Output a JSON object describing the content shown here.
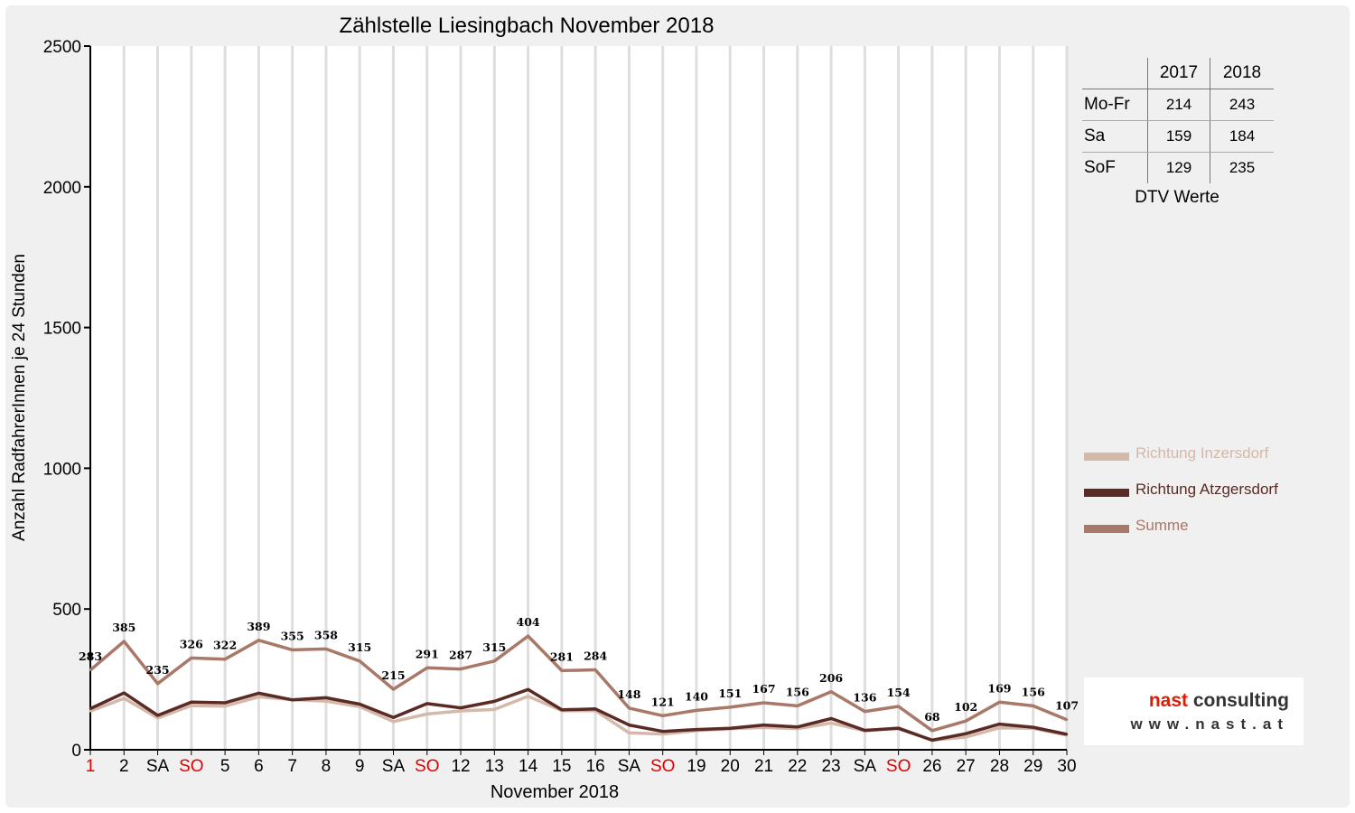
{
  "chart_data": {
    "type": "line",
    "title": "Zählstelle Liesingbach November 2018",
    "xlabel": "November 2018",
    "ylabel": "Anzahl RadfahrerInnen je 24 Stunden",
    "ylim": [
      0,
      2500
    ],
    "yticks": [
      0,
      500,
      1000,
      1500,
      2000,
      2500
    ],
    "grid": "vertical",
    "legend_position": "right",
    "categories": [
      "1",
      "2",
      "SA",
      "SO",
      "5",
      "6",
      "7",
      "8",
      "9",
      "SA",
      "SO",
      "12",
      "13",
      "14",
      "15",
      "16",
      "SA",
      "SO",
      "19",
      "20",
      "21",
      "22",
      "23",
      "SA",
      "SO",
      "26",
      "27",
      "28",
      "29",
      "30"
    ],
    "red_categories": [
      0,
      3,
      10,
      17,
      24
    ],
    "series": [
      {
        "name": "Richtung Inzersdorf",
        "color": "#d4b8aa",
        "values": [
          137,
          183,
          113,
          157,
          155,
          188,
          178,
          173,
          153,
          100,
          127,
          138,
          143,
          190,
          139,
          139,
          60,
          56,
          68,
          75,
          79,
          75,
          95,
          67,
          78,
          34,
          45,
          78,
          76,
          52
        ]
      },
      {
        "name": "Richtung Atzgersdorf",
        "color": "#5a2a24",
        "values": [
          146,
          202,
          122,
          169,
          167,
          201,
          177,
          185,
          162,
          115,
          164,
          149,
          172,
          214,
          142,
          145,
          88,
          65,
          72,
          76,
          88,
          81,
          111,
          69,
          76,
          34,
          57,
          91,
          80,
          55
        ]
      },
      {
        "name": "Summe",
        "color": "#a87868",
        "values": [
          283,
          385,
          235,
          326,
          322,
          389,
          355,
          358,
          315,
          215,
          291,
          287,
          315,
          404,
          281,
          284,
          148,
          121,
          140,
          151,
          167,
          156,
          206,
          136,
          154,
          68,
          102,
          169,
          156,
          107
        ]
      }
    ],
    "data_labels": [
      283,
      385,
      235,
      326,
      322,
      389,
      355,
      358,
      315,
      215,
      291,
      287,
      315,
      404,
      281,
      284,
      148,
      121,
      140,
      151,
      167,
      156,
      206,
      136,
      154,
      68,
      102,
      169,
      156,
      107
    ]
  },
  "dtv_table": {
    "headers": [
      "2017",
      "2018"
    ],
    "rows": [
      {
        "label": "Mo-Fr",
        "v2017": "214",
        "v2018": "243"
      },
      {
        "label": "Sa",
        "v2017": "159",
        "v2018": "184"
      },
      {
        "label": "SoF",
        "v2017": "129",
        "v2018": "235"
      }
    ],
    "caption": "DTV Werte"
  },
  "logo": {
    "name_prefix": "nast",
    "name_suffix": " consulting",
    "url": "www.nast.at"
  },
  "colors": {
    "background": "#f0f0f0",
    "plot_area": "#ffffff",
    "weekend_label": "#e00000",
    "logo_red": "#d81e05"
  }
}
